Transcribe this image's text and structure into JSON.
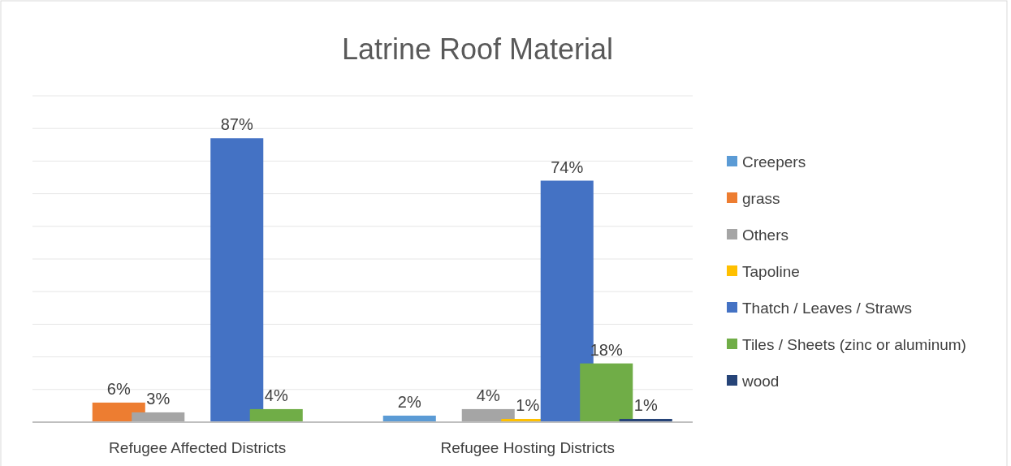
{
  "chart_data": {
    "type": "bar",
    "title": "Latrine Roof Material",
    "categories": [
      "Refugee Affected Districts",
      "Refugee Hosting Districts"
    ],
    "ylim": [
      0,
      100
    ],
    "yticks": [
      {
        "value": 0,
        "label": null
      },
      {
        "value": 10,
        "label": null
      },
      {
        "value": 20,
        "label": null
      },
      {
        "value": 30,
        "label": null
      },
      {
        "value": 40,
        "label": null
      },
      {
        "value": 50,
        "label": null
      },
      {
        "value": 60,
        "label": null
      },
      {
        "value": 70,
        "label": null
      },
      {
        "value": 80,
        "label": null
      },
      {
        "value": 90,
        "label": null
      },
      {
        "value": 100,
        "label": null
      }
    ],
    "grid": "y",
    "legend": "right",
    "tick_labels": "x",
    "series": [
      {
        "name": "Creepers",
        "color": "#5b9bd5",
        "values": [
          null,
          2
        ],
        "value_labels": [
          null,
          "2%"
        ]
      },
      {
        "name": "grass",
        "color": "#ed7d31",
        "values": [
          6,
          null
        ],
        "value_labels": [
          "6%",
          null
        ]
      },
      {
        "name": "Others",
        "color": "#a5a5a5",
        "values": [
          3,
          4
        ],
        "value_labels": [
          "3%",
          "4%"
        ]
      },
      {
        "name": "Tapoline",
        "color": "#ffc000",
        "values": [
          null,
          1
        ],
        "value_labels": [
          null,
          "1%"
        ]
      },
      {
        "name": "Thatch / Leaves / Straws",
        "color": "#4472c4",
        "values": [
          87,
          74
        ],
        "value_labels": [
          "87%",
          "74%"
        ]
      },
      {
        "name": "Tiles / Sheets (zinc or aluminum)",
        "color": "#70ad47",
        "values": [
          4,
          18
        ],
        "value_labels": [
          "4%",
          "18%"
        ]
      },
      {
        "name": "wood",
        "color": "#264478",
        "values": [
          null,
          1
        ],
        "value_labels": [
          null,
          "1%"
        ]
      }
    ]
  }
}
